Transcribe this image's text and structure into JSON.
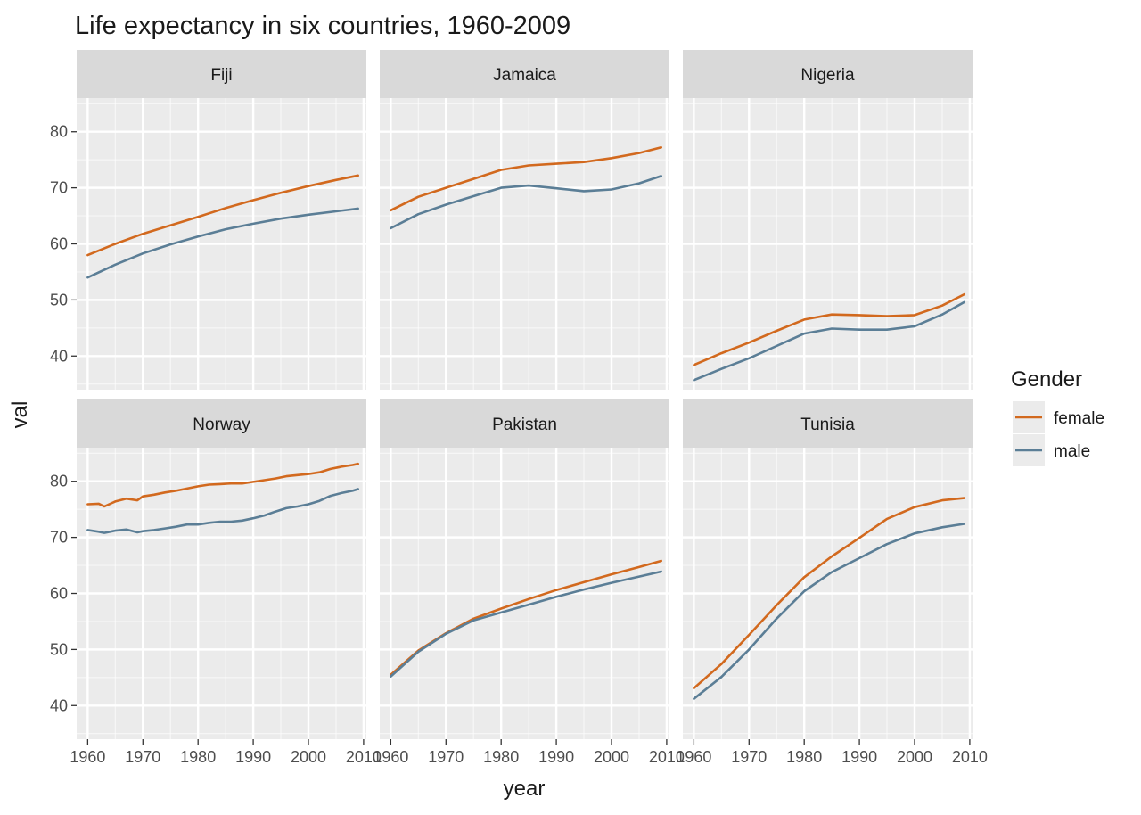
{
  "chart_data": {
    "type": "line",
    "title": "Life expectancy in six countries, 1960-2009",
    "xlabel": "year",
    "ylabel": "val",
    "xlim": [
      1958,
      2010.5
    ],
    "ylim": [
      34,
      86
    ],
    "x_ticks": [
      1960,
      1970,
      1980,
      1990,
      2000,
      2010
    ],
    "y_ticks": [
      40,
      50,
      60,
      70,
      80
    ],
    "grid": true,
    "legend": {
      "title": "Gender",
      "position": "right",
      "entries": [
        {
          "name": "female",
          "color": "#d2691e"
        },
        {
          "name": "male",
          "color": "#5b7e96"
        }
      ]
    },
    "colors": {
      "female": "#d2691e",
      "male": "#5b7e96",
      "panel_bg": "#ebebeb",
      "strip_bg": "#d9d9d9",
      "grid_major": "#ffffff"
    },
    "panels": [
      {
        "name": "Fiji",
        "series": [
          {
            "name": "female",
            "x": [
              1960,
              1965,
              1970,
              1975,
              1980,
              1985,
              1990,
              1995,
              2000,
              2005,
              2009
            ],
            "y": [
              58.0,
              60.0,
              61.8,
              63.3,
              64.8,
              66.4,
              67.8,
              69.1,
              70.3,
              71.4,
              72.2
            ]
          },
          {
            "name": "male",
            "x": [
              1960,
              1965,
              1970,
              1975,
              1980,
              1985,
              1990,
              1995,
              2000,
              2005,
              2009
            ],
            "y": [
              54.0,
              56.3,
              58.3,
              59.9,
              61.3,
              62.6,
              63.6,
              64.5,
              65.2,
              65.8,
              66.3
            ]
          }
        ]
      },
      {
        "name": "Jamaica",
        "series": [
          {
            "name": "female",
            "x": [
              1960,
              1965,
              1970,
              1975,
              1980,
              1985,
              1990,
              1995,
              2000,
              2005,
              2009
            ],
            "y": [
              66.0,
              68.4,
              70.0,
              71.6,
              73.2,
              74.0,
              74.3,
              74.6,
              75.3,
              76.2,
              77.2
            ]
          },
          {
            "name": "male",
            "x": [
              1960,
              1965,
              1970,
              1975,
              1980,
              1985,
              1990,
              1995,
              2000,
              2005,
              2009
            ],
            "y": [
              62.8,
              65.3,
              67.0,
              68.5,
              70.0,
              70.4,
              69.9,
              69.4,
              69.7,
              70.8,
              72.1
            ]
          }
        ]
      },
      {
        "name": "Nigeria",
        "series": [
          {
            "name": "female",
            "x": [
              1960,
              1965,
              1970,
              1975,
              1980,
              1985,
              1990,
              1995,
              2000,
              2005,
              2009
            ],
            "y": [
              38.4,
              40.5,
              42.4,
              44.5,
              46.5,
              47.4,
              47.3,
              47.1,
              47.3,
              49.0,
              51.0
            ]
          },
          {
            "name": "male",
            "x": [
              1960,
              1965,
              1970,
              1975,
              1980,
              1985,
              1990,
              1995,
              2000,
              2005,
              2009
            ],
            "y": [
              35.7,
              37.7,
              39.6,
              41.8,
              44.0,
              44.9,
              44.7,
              44.7,
              45.3,
              47.4,
              49.6
            ]
          }
        ]
      },
      {
        "name": "Norway",
        "series": [
          {
            "name": "female",
            "x": [
              1960,
              1962,
              1963,
              1965,
              1967,
              1969,
              1970,
              1972,
              1974,
              1976,
              1978,
              1980,
              1982,
              1984,
              1986,
              1988,
              1990,
              1992,
              1994,
              1996,
              1998,
              2000,
              2002,
              2004,
              2006,
              2008,
              2009
            ],
            "y": [
              75.9,
              76.0,
              75.5,
              76.4,
              76.9,
              76.6,
              77.3,
              77.6,
              78.0,
              78.3,
              78.7,
              79.1,
              79.4,
              79.5,
              79.6,
              79.6,
              79.9,
              80.2,
              80.5,
              80.9,
              81.1,
              81.3,
              81.6,
              82.2,
              82.6,
              82.9,
              83.1
            ]
          },
          {
            "name": "male",
            "x": [
              1960,
              1962,
              1963,
              1965,
              1967,
              1969,
              1970,
              1972,
              1974,
              1976,
              1978,
              1980,
              1982,
              1984,
              1986,
              1988,
              1990,
              1992,
              1994,
              1996,
              1998,
              2000,
              2002,
              2004,
              2006,
              2008,
              2009
            ],
            "y": [
              71.3,
              71.0,
              70.8,
              71.2,
              71.4,
              70.9,
              71.1,
              71.3,
              71.6,
              71.9,
              72.3,
              72.3,
              72.6,
              72.8,
              72.8,
              73.0,
              73.4,
              73.9,
              74.6,
              75.2,
              75.5,
              75.9,
              76.5,
              77.4,
              77.9,
              78.3,
              78.6
            ]
          }
        ]
      },
      {
        "name": "Pakistan",
        "series": [
          {
            "name": "female",
            "x": [
              1960,
              1965,
              1970,
              1975,
              1980,
              1985,
              1990,
              1995,
              2000,
              2005,
              2009
            ],
            "y": [
              45.5,
              49.8,
              52.9,
              55.5,
              57.3,
              59.0,
              60.6,
              62.0,
              63.4,
              64.7,
              65.8
            ]
          },
          {
            "name": "male",
            "x": [
              1960,
              1965,
              1970,
              1975,
              1980,
              1985,
              1990,
              1995,
              2000,
              2005,
              2009
            ],
            "y": [
              45.2,
              49.6,
              52.8,
              55.2,
              56.6,
              58.0,
              59.4,
              60.7,
              61.9,
              63.0,
              63.9
            ]
          }
        ]
      },
      {
        "name": "Tunisia",
        "series": [
          {
            "name": "female",
            "x": [
              1960,
              1965,
              1970,
              1975,
              1980,
              1985,
              1990,
              1995,
              2000,
              2005,
              2009
            ],
            "y": [
              43.1,
              47.4,
              52.6,
              57.9,
              62.9,
              66.6,
              69.9,
              73.3,
              75.4,
              76.6,
              77.0
            ]
          },
          {
            "name": "male",
            "x": [
              1960,
              1965,
              1970,
              1975,
              1980,
              1985,
              1990,
              1995,
              2000,
              2005,
              2009
            ],
            "y": [
              41.2,
              45.1,
              50.0,
              55.5,
              60.4,
              63.8,
              66.3,
              68.8,
              70.7,
              71.8,
              72.4
            ]
          }
        ]
      }
    ]
  }
}
